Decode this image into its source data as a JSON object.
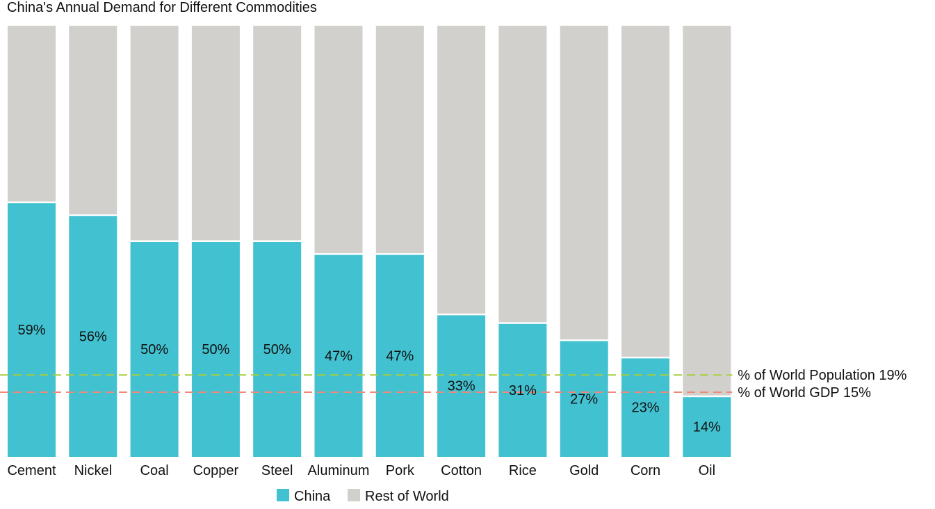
{
  "chart_data": {
    "type": "bar",
    "stacked": true,
    "title": "China's Annual Demand for Different Commodities",
    "xlabel": "",
    "ylabel": "",
    "ylim": [
      0,
      100
    ],
    "categories": [
      "Cement",
      "Nickel",
      "Coal",
      "Copper",
      "Steel",
      "Aluminum",
      "Pork",
      "Cotton",
      "Rice",
      "Gold",
      "Corn",
      "Oil"
    ],
    "series": [
      {
        "name": "China",
        "color": "#42c1d0",
        "values": [
          59,
          56,
          50,
          50,
          50,
          47,
          47,
          33,
          31,
          27,
          23,
          14
        ]
      },
      {
        "name": "Rest of World",
        "color": "#d1d0cd",
        "values": [
          41,
          44,
          50,
          50,
          50,
          53,
          53,
          67,
          69,
          73,
          77,
          86
        ]
      }
    ],
    "data_labels": [
      "59%",
      "56%",
      "50%",
      "50%",
      "50%",
      "47%",
      "47%",
      "33%",
      "31%",
      "27%",
      "23%",
      "14%"
    ],
    "reference_lines": [
      {
        "label": "% of World Population 19%",
        "value": 19,
        "color": "#a6cf3b",
        "style": "dashed"
      },
      {
        "label": "% of World GDP 15%",
        "value": 15,
        "color": "#f08a78",
        "style": "dashed"
      }
    ],
    "legend": {
      "placement": "bottom",
      "items": [
        "China",
        "Rest of World"
      ]
    },
    "grid": false
  }
}
